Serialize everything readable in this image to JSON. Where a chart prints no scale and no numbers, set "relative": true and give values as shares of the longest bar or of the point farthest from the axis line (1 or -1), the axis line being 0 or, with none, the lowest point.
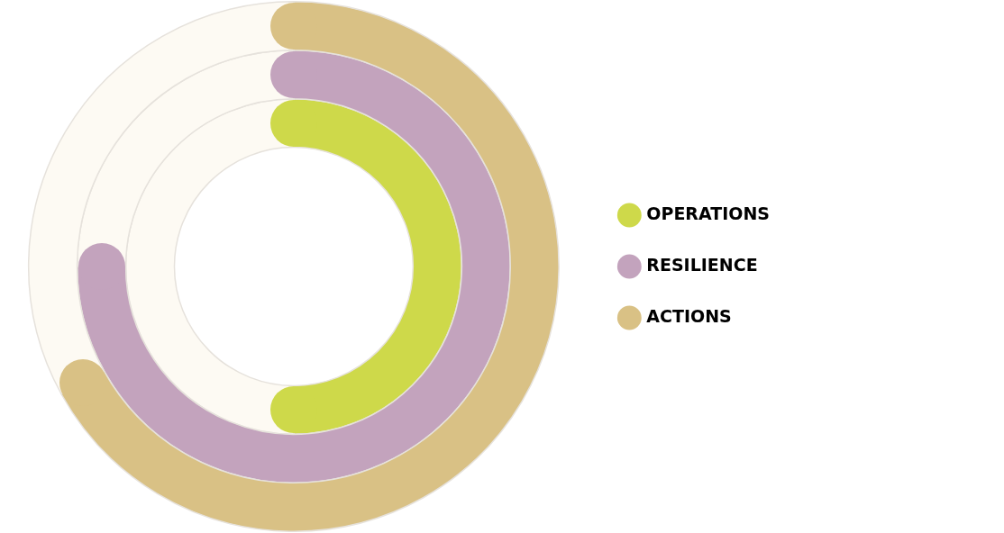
{
  "chart_data": {
    "type": "donut",
    "relative": true,
    "legend": "right",
    "series": [
      {
        "name": "OPERATIONS",
        "colors": [
          "#ced94a",
          "#fdfaf3"
        ],
        "values": [
          50,
          50
        ]
      },
      {
        "name": "RESILIENCE",
        "colors": [
          "#c3a3bd",
          "#fdfaf3"
        ],
        "values": [
          75,
          25
        ]
      },
      {
        "name": "ACTIONS",
        "colors": [
          "#d9c185",
          "#fdfaf3"
        ],
        "values": [
          67,
          33
        ]
      }
    ]
  }
}
